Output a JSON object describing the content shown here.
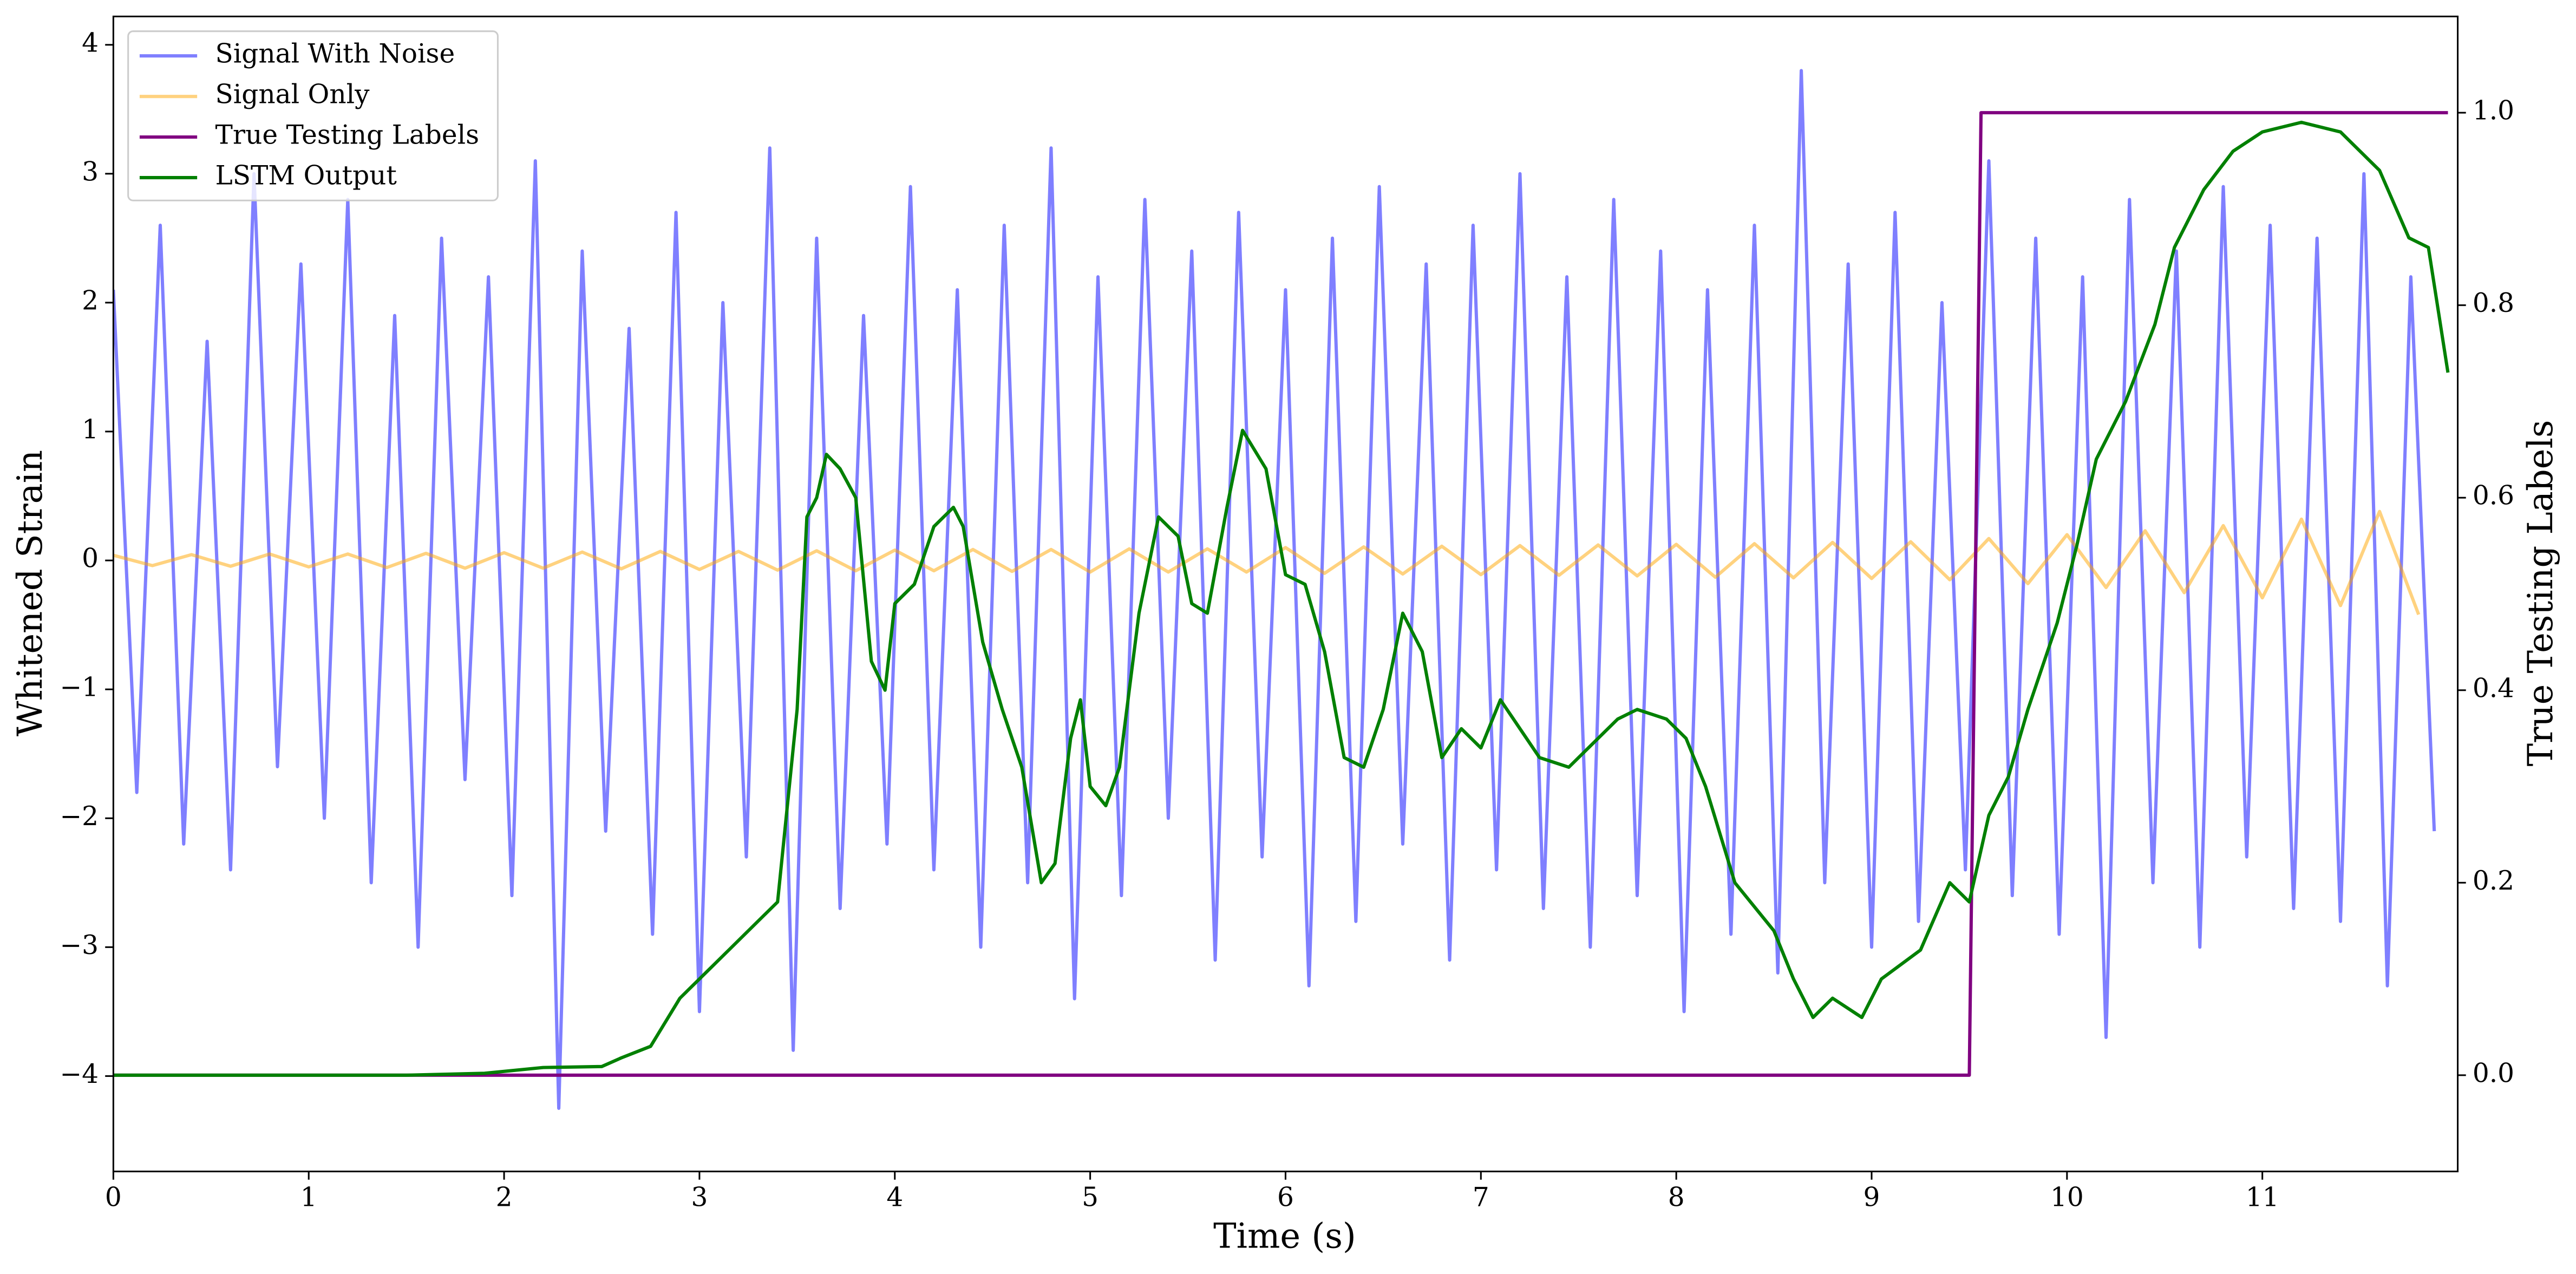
{
  "chart_data": {
    "type": "line",
    "xlabel": "Time (s)",
    "ylabel": "Whitened Strain",
    "y2label": "True Testing Labels",
    "xlim": [
      0,
      12
    ],
    "ylim": [
      -4.74,
      4.22
    ],
    "y2lim": [
      -0.1,
      1.1
    ],
    "xticks": [
      0,
      1,
      2,
      3,
      4,
      5,
      6,
      7,
      8,
      9,
      10,
      11
    ],
    "yticks": [
      {
        "value": -4,
        "label": "−4"
      },
      {
        "value": -3,
        "label": "−3"
      },
      {
        "value": -2,
        "label": "−2"
      },
      {
        "value": -1,
        "label": "−1"
      },
      0,
      1,
      2,
      3,
      4
    ],
    "y2ticks": [
      {
        "value": 0,
        "label": "0.0"
      },
      0.2,
      0.4,
      0.6,
      0.8,
      {
        "value": 1,
        "label": "1.0"
      }
    ],
    "legend": "upper left",
    "series": [
      {
        "name": "Signal With Noise",
        "color": "blue",
        "alpha": 0.5,
        "x": [
          0,
          0.12,
          0.24,
          0.36,
          0.48,
          0.6,
          0.72,
          0.84,
          0.96,
          1.08,
          1.2,
          1.32,
          1.44,
          1.56,
          1.68,
          1.8,
          1.92,
          2.04,
          2.16,
          2.28,
          2.4,
          2.52,
          2.64,
          2.76,
          2.88,
          3,
          3.12,
          3.24,
          3.36,
          3.48,
          3.6,
          3.72,
          3.84,
          3.96,
          4.08,
          4.2,
          4.32,
          4.44,
          4.56,
          4.68,
          4.8,
          4.92,
          5.04,
          5.16,
          5.28,
          5.4,
          5.52,
          5.64,
          5.76,
          5.88,
          6,
          6.12,
          6.24,
          6.36,
          6.48,
          6.6,
          6.72,
          6.84,
          6.96,
          7.08,
          7.2,
          7.32,
          7.44,
          7.56,
          7.68,
          7.8,
          7.92,
          8.04,
          8.16,
          8.28,
          8.4,
          8.52,
          8.64,
          8.76,
          8.88,
          9,
          9.12,
          9.24,
          9.36,
          9.48,
          9.6,
          9.72,
          9.84,
          9.96,
          10.08,
          10.2,
          10.32,
          10.44,
          10.56,
          10.68,
          10.8,
          10.92,
          11.04,
          11.16,
          11.28,
          11.4,
          11.52,
          11.64,
          11.76,
          11.88
        ],
        "values": [
          2.1,
          -1.8,
          2.6,
          -2.2,
          1.7,
          -2.4,
          3.0,
          -1.6,
          2.3,
          -2.0,
          2.8,
          -2.5,
          1.9,
          -3.0,
          2.5,
          -1.7,
          2.2,
          -2.6,
          3.1,
          -4.25,
          2.4,
          -2.1,
          1.8,
          -2.9,
          2.7,
          -3.5,
          2.0,
          -2.3,
          3.2,
          -3.8,
          2.5,
          -2.7,
          1.9,
          -2.2,
          2.9,
          -2.4,
          2.1,
          -3.0,
          2.6,
          -2.5,
          3.2,
          -3.4,
          2.2,
          -2.6,
          2.8,
          -2.0,
          2.4,
          -3.1,
          2.7,
          -2.3,
          2.1,
          -3.3,
          2.5,
          -2.8,
          2.9,
          -2.2,
          2.3,
          -3.1,
          2.6,
          -2.4,
          3.0,
          -2.7,
          2.2,
          -3.0,
          2.8,
          -2.6,
          2.4,
          -3.5,
          2.1,
          -2.9,
          2.6,
          -3.2,
          3.8,
          -2.5,
          2.3,
          -3.0,
          2.7,
          -2.8,
          2.0,
          -2.4,
          3.1,
          -2.6,
          2.5,
          -2.9,
          2.2,
          -3.7,
          2.8,
          -2.5,
          2.4,
          -3.0,
          2.9,
          -2.3,
          2.6,
          -2.7,
          2.5,
          -2.8,
          3.0,
          -3.3,
          2.2,
          -2.1
        ]
      },
      {
        "name": "Signal Only",
        "color": "orange",
        "alpha": 0.5,
        "x": [
          0,
          0.2,
          0.4,
          0.6,
          0.8,
          1,
          1.2,
          1.4,
          1.6,
          1.8,
          2,
          2.2,
          2.4,
          2.6,
          2.8,
          3,
          3.2,
          3.4,
          3.6,
          3.8,
          4,
          4.2,
          4.4,
          4.6,
          4.8,
          5,
          5.2,
          5.4,
          5.6,
          5.8,
          6,
          6.2,
          6.4,
          6.6,
          6.8,
          7,
          7.2,
          7.4,
          7.6,
          7.8,
          8,
          8.2,
          8.4,
          8.6,
          8.8,
          9,
          9.2,
          9.4,
          9.6,
          9.8,
          10,
          10.2,
          10.4,
          10.6,
          10.8,
          11,
          11.2,
          11.4,
          11.6,
          11.8
        ],
        "values": [
          0.04,
          -0.04,
          0.045,
          -0.045,
          0.05,
          -0.05,
          0.05,
          -0.055,
          0.055,
          -0.06,
          0.06,
          -0.06,
          0.065,
          -0.065,
          0.07,
          -0.07,
          0.07,
          -0.075,
          0.075,
          -0.08,
          0.08,
          -0.08,
          0.085,
          -0.085,
          0.085,
          -0.09,
          0.09,
          -0.09,
          0.09,
          -0.09,
          0.1,
          -0.1,
          0.105,
          -0.105,
          0.11,
          -0.11,
          0.115,
          -0.115,
          0.12,
          -0.12,
          0.125,
          -0.13,
          0.13,
          -0.135,
          0.14,
          -0.14,
          0.145,
          -0.15,
          0.17,
          -0.18,
          0.2,
          -0.21,
          0.23,
          -0.25,
          0.27,
          -0.29,
          0.32,
          -0.35,
          0.38,
          -0.42
        ]
      },
      {
        "name": "True Testing Labels",
        "color": "purple",
        "axis": "y2",
        "x": [
          0,
          9.5,
          9.56,
          11.95
        ],
        "values": [
          0,
          0,
          1,
          1
        ]
      },
      {
        "name": "LSTM Output",
        "color": "green",
        "axis": "y2",
        "x": [
          0,
          1,
          1.5,
          1.9,
          2.2,
          2.5,
          2.6,
          2.75,
          2.9,
          3.05,
          3.15,
          3.3,
          3.4,
          3.5,
          3.55,
          3.6,
          3.65,
          3.72,
          3.8,
          3.88,
          3.95,
          4.0,
          4.1,
          4.2,
          4.3,
          4.35,
          4.45,
          4.55,
          4.65,
          4.75,
          4.82,
          4.9,
          4.95,
          5.0,
          5.08,
          5.15,
          5.25,
          5.35,
          5.45,
          5.52,
          5.6,
          5.7,
          5.78,
          5.9,
          6.0,
          6.1,
          6.2,
          6.3,
          6.4,
          6.5,
          6.6,
          6.7,
          6.8,
          6.9,
          7.0,
          7.1,
          7.2,
          7.3,
          7.45,
          7.55,
          7.7,
          7.8,
          7.95,
          8.05,
          8.15,
          8.3,
          8.5,
          8.6,
          8.7,
          8.8,
          8.95,
          9.05,
          9.25,
          9.4,
          9.5,
          9.6,
          9.7,
          9.8,
          9.95,
          10.05,
          10.15,
          10.3,
          10.45,
          10.55,
          10.7,
          10.85,
          11.0,
          11.2,
          11.4,
          11.6,
          11.75,
          11.85,
          11.95
        ],
        "values": [
          0,
          0,
          0,
          0.002,
          0.008,
          0.009,
          0.018,
          0.03,
          0.08,
          0.11,
          0.13,
          0.16,
          0.18,
          0.38,
          0.58,
          0.6,
          0.645,
          0.63,
          0.6,
          0.43,
          0.4,
          0.49,
          0.51,
          0.57,
          0.59,
          0.57,
          0.45,
          0.38,
          0.32,
          0.2,
          0.22,
          0.35,
          0.39,
          0.3,
          0.28,
          0.32,
          0.48,
          0.58,
          0.56,
          0.49,
          0.48,
          0.59,
          0.67,
          0.63,
          0.52,
          0.51,
          0.44,
          0.33,
          0.32,
          0.38,
          0.48,
          0.44,
          0.33,
          0.36,
          0.34,
          0.39,
          0.36,
          0.33,
          0.32,
          0.34,
          0.37,
          0.38,
          0.37,
          0.35,
          0.3,
          0.2,
          0.15,
          0.1,
          0.06,
          0.08,
          0.06,
          0.1,
          0.13,
          0.2,
          0.18,
          0.27,
          0.31,
          0.38,
          0.47,
          0.55,
          0.64,
          0.7,
          0.78,
          0.86,
          0.92,
          0.96,
          0.98,
          0.99,
          0.98,
          0.94,
          0.87,
          0.86,
          0.73
        ]
      }
    ]
  }
}
